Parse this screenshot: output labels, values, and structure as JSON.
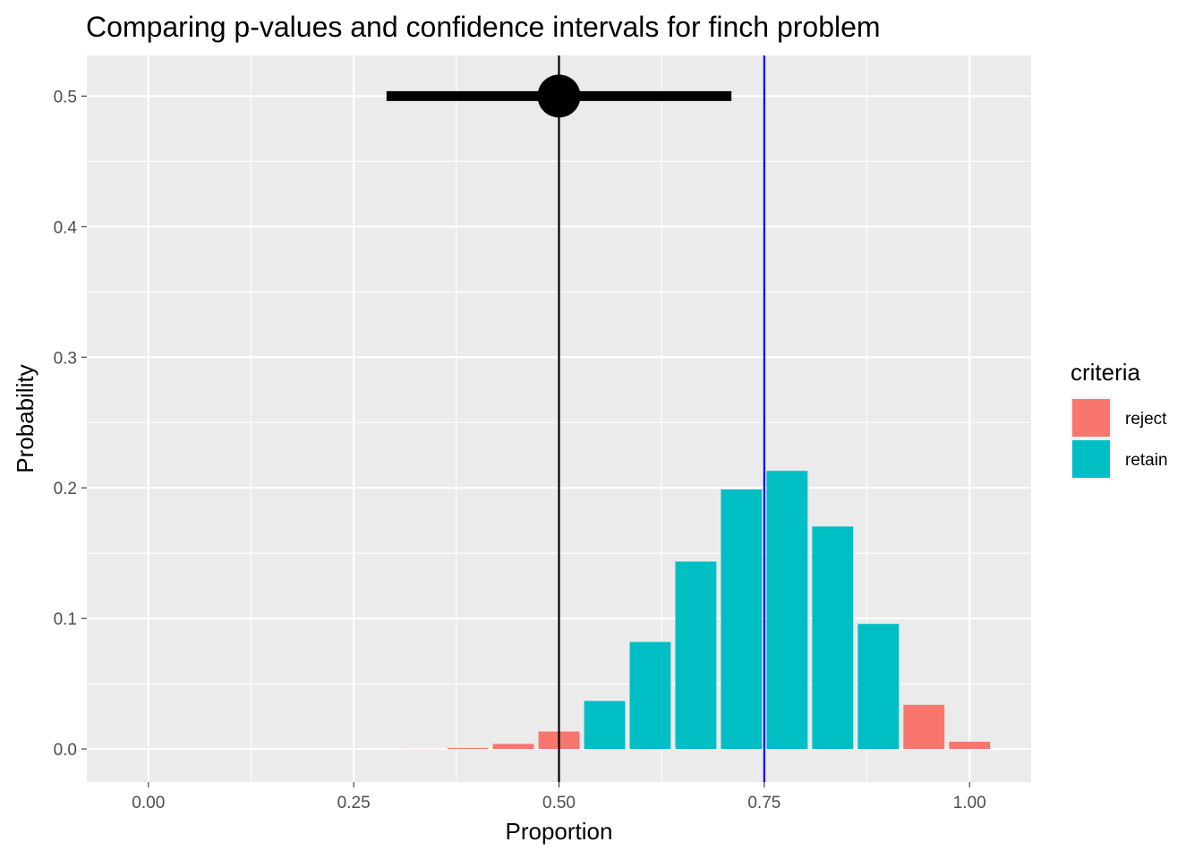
{
  "chart_data": {
    "type": "bar",
    "title": "Comparing p-values and confidence intervals for finch problem",
    "xlabel": "Proportion",
    "ylabel": "Probability",
    "xlim": [
      -0.075,
      1.075
    ],
    "ylim": [
      -0.0253,
      0.5311
    ],
    "x_ticks": [
      0,
      0.25,
      0.5,
      0.75,
      1
    ],
    "x_tick_labels": [
      "0.00",
      "0.25",
      "0.50",
      "0.75",
      "1.00"
    ],
    "y_ticks": [
      0,
      0.1,
      0.2,
      0.3,
      0.4,
      0.5
    ],
    "y_tick_labels": [
      "0.0",
      "0.1",
      "0.2",
      "0.3",
      "0.4",
      "0.5"
    ],
    "grid": true,
    "legend": {
      "title": "criteria",
      "position": "right",
      "entries": [
        {
          "label": "reject",
          "color": "#F8766D"
        },
        {
          "label": "retain",
          "color": "#00BFC4"
        }
      ]
    },
    "bars": [
      {
        "x": 0.0,
        "y": 0.0,
        "criteria": "reject"
      },
      {
        "x": 0.0556,
        "y": 0.0,
        "criteria": "reject"
      },
      {
        "x": 0.1111,
        "y": 0.0,
        "criteria": "reject"
      },
      {
        "x": 0.1667,
        "y": 0.0,
        "criteria": "reject"
      },
      {
        "x": 0.2222,
        "y": 0.0,
        "criteria": "reject"
      },
      {
        "x": 0.2778,
        "y": 0.0,
        "criteria": "reject"
      },
      {
        "x": 0.3333,
        "y": 0.0001,
        "criteria": "reject"
      },
      {
        "x": 0.3889,
        "y": 0.0008,
        "criteria": "reject"
      },
      {
        "x": 0.4444,
        "y": 0.0039,
        "criteria": "reject"
      },
      {
        "x": 0.5,
        "y": 0.0134,
        "criteria": "reject"
      },
      {
        "x": 0.5556,
        "y": 0.0368,
        "criteria": "retain"
      },
      {
        "x": 0.6111,
        "y": 0.082,
        "criteria": "retain"
      },
      {
        "x": 0.6667,
        "y": 0.1436,
        "criteria": "retain"
      },
      {
        "x": 0.7222,
        "y": 0.1988,
        "criteria": "retain"
      },
      {
        "x": 0.7778,
        "y": 0.213,
        "criteria": "retain"
      },
      {
        "x": 0.8333,
        "y": 0.1704,
        "criteria": "retain"
      },
      {
        "x": 0.8889,
        "y": 0.0958,
        "criteria": "retain"
      },
      {
        "x": 0.9444,
        "y": 0.0338,
        "criteria": "reject"
      },
      {
        "x": 1.0,
        "y": 0.0056,
        "criteria": "reject"
      }
    ],
    "vlines": [
      {
        "x": 0.5,
        "color": "#000000"
      },
      {
        "x": 0.75,
        "color": "#0000FF"
      }
    ],
    "interval": {
      "center": 0.5,
      "low": 0.29,
      "high": 0.71,
      "y": 0.5,
      "color": "#000000"
    },
    "colors": {
      "panel_bg": "#EBEBEB",
      "grid": "#FFFFFF"
    }
  }
}
